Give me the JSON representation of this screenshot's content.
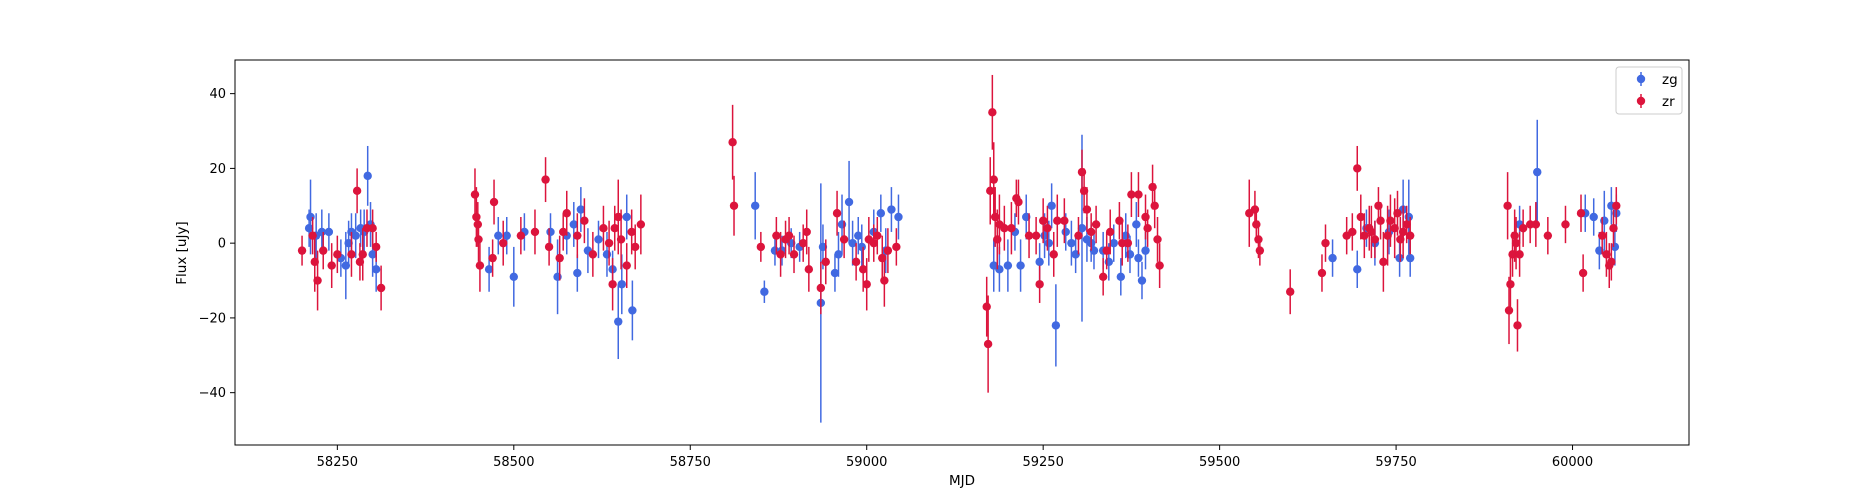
{
  "chart_data": {
    "type": "scatter",
    "error_bars": true,
    "xlabel": "MJD",
    "ylabel": "Flux [uJy]",
    "xlim": [
      58105,
      60165
    ],
    "ylim": [
      -54,
      49
    ],
    "xticks": [
      58250,
      58500,
      58750,
      59000,
      59250,
      59500,
      59750,
      60000
    ],
    "yticks": [
      -40,
      -20,
      0,
      20,
      40
    ],
    "grid": false,
    "legend": {
      "position": "top-right"
    },
    "colors": {
      "zg": "#4169e1",
      "zr": "#dc143c"
    },
    "series": [
      {
        "name": "zg",
        "points": [
          [
            58210,
            4,
            5
          ],
          [
            58212,
            7,
            10
          ],
          [
            58220,
            2,
            6
          ],
          [
            58228,
            3,
            6
          ],
          [
            58238,
            3,
            5
          ],
          [
            58255,
            -4,
            5
          ],
          [
            58262,
            -6,
            9
          ],
          [
            58266,
            0,
            6
          ],
          [
            58270,
            3,
            5
          ],
          [
            58276,
            2,
            6
          ],
          [
            58283,
            4,
            5
          ],
          [
            58288,
            3,
            6
          ],
          [
            58293,
            18,
            8
          ],
          [
            58297,
            5,
            6
          ],
          [
            58300,
            -3,
            6
          ],
          [
            58305,
            -7,
            6
          ],
          [
            58465,
            -7,
            6
          ],
          [
            58478,
            2,
            5
          ],
          [
            58490,
            2,
            5
          ],
          [
            58500,
            -9,
            8
          ],
          [
            58515,
            3,
            5
          ],
          [
            58552,
            3,
            5
          ],
          [
            58562,
            -9,
            10
          ],
          [
            58575,
            2,
            5
          ],
          [
            58585,
            5,
            6
          ],
          [
            58590,
            -8,
            5
          ],
          [
            58595,
            9,
            6
          ],
          [
            58605,
            -2,
            6
          ],
          [
            58620,
            1,
            5
          ],
          [
            58632,
            -3,
            6
          ],
          [
            58640,
            -7,
            5
          ],
          [
            58648,
            -21,
            10
          ],
          [
            58653,
            -11,
            8
          ],
          [
            58660,
            7,
            6
          ],
          [
            58668,
            -18,
            8
          ],
          [
            58842,
            10,
            9
          ],
          [
            58855,
            -13,
            3
          ],
          [
            58870,
            -2,
            4
          ],
          [
            58880,
            -2,
            4
          ],
          [
            58893,
            0,
            4
          ],
          [
            58905,
            -1,
            4
          ],
          [
            58935,
            -16,
            32
          ],
          [
            58938,
            -1,
            6
          ],
          [
            58955,
            -8,
            5
          ],
          [
            58960,
            -3,
            6
          ],
          [
            58965,
            5,
            8
          ],
          [
            58975,
            11,
            11
          ],
          [
            58980,
            0,
            6
          ],
          [
            58988,
            2,
            5
          ],
          [
            58993,
            -1,
            6
          ],
          [
            59010,
            3,
            6
          ],
          [
            59020,
            8,
            5
          ],
          [
            59027,
            -2,
            6
          ],
          [
            59035,
            9,
            6
          ],
          [
            59045,
            7,
            6
          ],
          [
            59180,
            -6,
            7
          ],
          [
            59188,
            -7,
            6
          ],
          [
            59200,
            -6,
            7
          ],
          [
            59210,
            3,
            5
          ],
          [
            59218,
            -6,
            7
          ],
          [
            59226,
            7,
            6
          ],
          [
            59245,
            -5,
            5
          ],
          [
            59252,
            2,
            6
          ],
          [
            59258,
            0,
            6
          ],
          [
            59262,
            10,
            6
          ],
          [
            59268,
            -22,
            11
          ],
          [
            59282,
            3,
            5
          ],
          [
            59290,
            0,
            6
          ],
          [
            59296,
            -3,
            5
          ],
          [
            59305,
            4,
            25
          ],
          [
            59312,
            1,
            6
          ],
          [
            59318,
            0,
            5
          ],
          [
            59322,
            -2,
            5
          ],
          [
            59335,
            -2,
            5
          ],
          [
            59343,
            -5,
            5
          ],
          [
            59350,
            0,
            5
          ],
          [
            59360,
            -9,
            5
          ],
          [
            59367,
            2,
            6
          ],
          [
            59373,
            -3,
            5
          ],
          [
            59382,
            5,
            6
          ],
          [
            59385,
            -4,
            5
          ],
          [
            59390,
            -10,
            5
          ],
          [
            59395,
            -2,
            5
          ],
          [
            59660,
            -4,
            5
          ],
          [
            59695,
            -7,
            5
          ],
          [
            59708,
            4,
            5
          ],
          [
            59720,
            0,
            6
          ],
          [
            59740,
            3,
            6
          ],
          [
            59755,
            -4,
            5
          ],
          [
            59760,
            9,
            8
          ],
          [
            59768,
            7,
            10
          ],
          [
            59770,
            -4,
            5
          ],
          [
            59950,
            19,
            14
          ],
          [
            59925,
            5,
            5
          ],
          [
            60018,
            8,
            5
          ],
          [
            60030,
            7,
            5
          ],
          [
            60038,
            -2,
            5
          ],
          [
            60045,
            6,
            8
          ],
          [
            60055,
            10,
            5
          ],
          [
            60060,
            -1,
            5
          ],
          [
            60062,
            8,
            5
          ]
        ]
      },
      {
        "name": "zr",
        "points": [
          [
            58200,
            -2,
            4
          ],
          [
            58215,
            2,
            5
          ],
          [
            58218,
            -5,
            8
          ],
          [
            58222,
            -10,
            8
          ],
          [
            58230,
            -2,
            5
          ],
          [
            58242,
            -6,
            6
          ],
          [
            58250,
            -3,
            5
          ],
          [
            58270,
            -3,
            6
          ],
          [
            58278,
            14,
            6
          ],
          [
            58282,
            -5,
            5
          ],
          [
            58286,
            -3,
            7
          ],
          [
            58292,
            4,
            5
          ],
          [
            58300,
            4,
            5
          ],
          [
            58305,
            -1,
            4
          ],
          [
            58312,
            -12,
            6
          ],
          [
            58445,
            13,
            7
          ],
          [
            58447,
            7,
            8
          ],
          [
            58449,
            5,
            6
          ],
          [
            58450,
            1,
            6
          ],
          [
            58452,
            -6,
            7
          ],
          [
            58470,
            -4,
            5
          ],
          [
            58472,
            11,
            6
          ],
          [
            58485,
            0,
            6
          ],
          [
            58510,
            2,
            5
          ],
          [
            58530,
            3,
            6
          ],
          [
            58545,
            17,
            6
          ],
          [
            58550,
            -1,
            5
          ],
          [
            58565,
            -4,
            6
          ],
          [
            58570,
            3,
            5
          ],
          [
            58575,
            8,
            6
          ],
          [
            58590,
            2,
            6
          ],
          [
            58600,
            6,
            6
          ],
          [
            58612,
            -3,
            6
          ],
          [
            58627,
            4,
            6
          ],
          [
            58635,
            0,
            6
          ],
          [
            58640,
            -11,
            7
          ],
          [
            58643,
            4,
            6
          ],
          [
            58648,
            7,
            10
          ],
          [
            58652,
            1,
            8
          ],
          [
            58660,
            -6,
            6
          ],
          [
            58667,
            3,
            6
          ],
          [
            58672,
            -1,
            6
          ],
          [
            58680,
            5,
            8
          ],
          [
            58810,
            27,
            10
          ],
          [
            58812,
            10,
            8
          ],
          [
            58850,
            -1,
            4
          ],
          [
            58872,
            2,
            5
          ],
          [
            58878,
            -3,
            6
          ],
          [
            58885,
            1,
            5
          ],
          [
            58890,
            2,
            5
          ],
          [
            58897,
            -3,
            5
          ],
          [
            58910,
            0,
            5
          ],
          [
            58915,
            3,
            6
          ],
          [
            58918,
            -7,
            6
          ],
          [
            58935,
            -12,
            7
          ],
          [
            58942,
            -5,
            6
          ],
          [
            58958,
            8,
            6
          ],
          [
            58968,
            1,
            5
          ],
          [
            58985,
            -5,
            5
          ],
          [
            58995,
            -7,
            6
          ],
          [
            59000,
            -11,
            7
          ],
          [
            59003,
            1,
            6
          ],
          [
            59010,
            0,
            5
          ],
          [
            59015,
            2,
            5
          ],
          [
            59022,
            -4,
            6
          ],
          [
            59025,
            -10,
            7
          ],
          [
            59030,
            -2,
            6
          ],
          [
            59042,
            -1,
            5
          ],
          [
            59170,
            -17,
            8
          ],
          [
            59172,
            -27,
            13
          ],
          [
            59175,
            14,
            9
          ],
          [
            59178,
            35,
            10
          ],
          [
            59180,
            17,
            10
          ],
          [
            59182,
            7,
            8
          ],
          [
            59185,
            1,
            8
          ],
          [
            59188,
            5,
            8
          ],
          [
            59195,
            4,
            6
          ],
          [
            59205,
            4,
            7
          ],
          [
            59212,
            12,
            5
          ],
          [
            59215,
            11,
            6
          ],
          [
            59230,
            2,
            6
          ],
          [
            59240,
            2,
            5
          ],
          [
            59245,
            -11,
            5
          ],
          [
            59250,
            6,
            6
          ],
          [
            59256,
            4,
            6
          ],
          [
            59265,
            -3,
            6
          ],
          [
            59270,
            6,
            7
          ],
          [
            59280,
            6,
            6
          ],
          [
            59300,
            2,
            5
          ],
          [
            59305,
            19,
            6
          ],
          [
            59308,
            14,
            6
          ],
          [
            59312,
            9,
            6
          ],
          [
            59318,
            3,
            5
          ],
          [
            59325,
            5,
            5
          ],
          [
            59335,
            -9,
            5
          ],
          [
            59340,
            -2,
            5
          ],
          [
            59345,
            3,
            6
          ],
          [
            59358,
            6,
            5
          ],
          [
            59362,
            0,
            6
          ],
          [
            59370,
            0,
            5
          ],
          [
            59375,
            13,
            6
          ],
          [
            59385,
            13,
            6
          ],
          [
            59395,
            7,
            6
          ],
          [
            59398,
            4,
            5
          ],
          [
            59405,
            15,
            6
          ],
          [
            59408,
            10,
            6
          ],
          [
            59412,
            1,
            6
          ],
          [
            59415,
            -6,
            6
          ],
          [
            59542,
            8,
            9
          ],
          [
            59550,
            9,
            5
          ],
          [
            59552,
            5,
            5
          ],
          [
            59555,
            1,
            5
          ],
          [
            59557,
            -2,
            4
          ],
          [
            59600,
            -13,
            6
          ],
          [
            59645,
            -8,
            5
          ],
          [
            59650,
            0,
            5
          ],
          [
            59680,
            2,
            5
          ],
          [
            59688,
            3,
            5
          ],
          [
            59695,
            20,
            6
          ],
          [
            59700,
            7,
            6
          ],
          [
            59705,
            2,
            6
          ],
          [
            59712,
            4,
            6
          ],
          [
            59715,
            3,
            7
          ],
          [
            59720,
            1,
            5
          ],
          [
            59725,
            10,
            5
          ],
          [
            59728,
            6,
            5
          ],
          [
            59732,
            -5,
            8
          ],
          [
            59738,
            2,
            8
          ],
          [
            59742,
            6,
            7
          ],
          [
            59748,
            4,
            8
          ],
          [
            59752,
            8,
            6
          ],
          [
            59756,
            1,
            6
          ],
          [
            59760,
            3,
            7
          ],
          [
            59765,
            5,
            5
          ],
          [
            59770,
            2,
            5
          ],
          [
            59908,
            10,
            9
          ],
          [
            59910,
            -18,
            9
          ],
          [
            59912,
            -11,
            8
          ],
          [
            59915,
            -3,
            6
          ],
          [
            59918,
            2,
            7
          ],
          [
            59920,
            0,
            7
          ],
          [
            59922,
            -22,
            7
          ],
          [
            59925,
            -3,
            6
          ],
          [
            59930,
            4,
            5
          ],
          [
            59940,
            5,
            5
          ],
          [
            59948,
            5,
            6
          ],
          [
            59965,
            2,
            5
          ],
          [
            59990,
            5,
            5
          ],
          [
            60012,
            8,
            5
          ],
          [
            60015,
            -8,
            5
          ],
          [
            60042,
            2,
            5
          ],
          [
            60048,
            -3,
            6
          ],
          [
            60052,
            -6,
            6
          ],
          [
            60055,
            -5,
            5
          ],
          [
            60058,
            4,
            5
          ],
          [
            60062,
            10,
            5
          ]
        ]
      }
    ]
  }
}
